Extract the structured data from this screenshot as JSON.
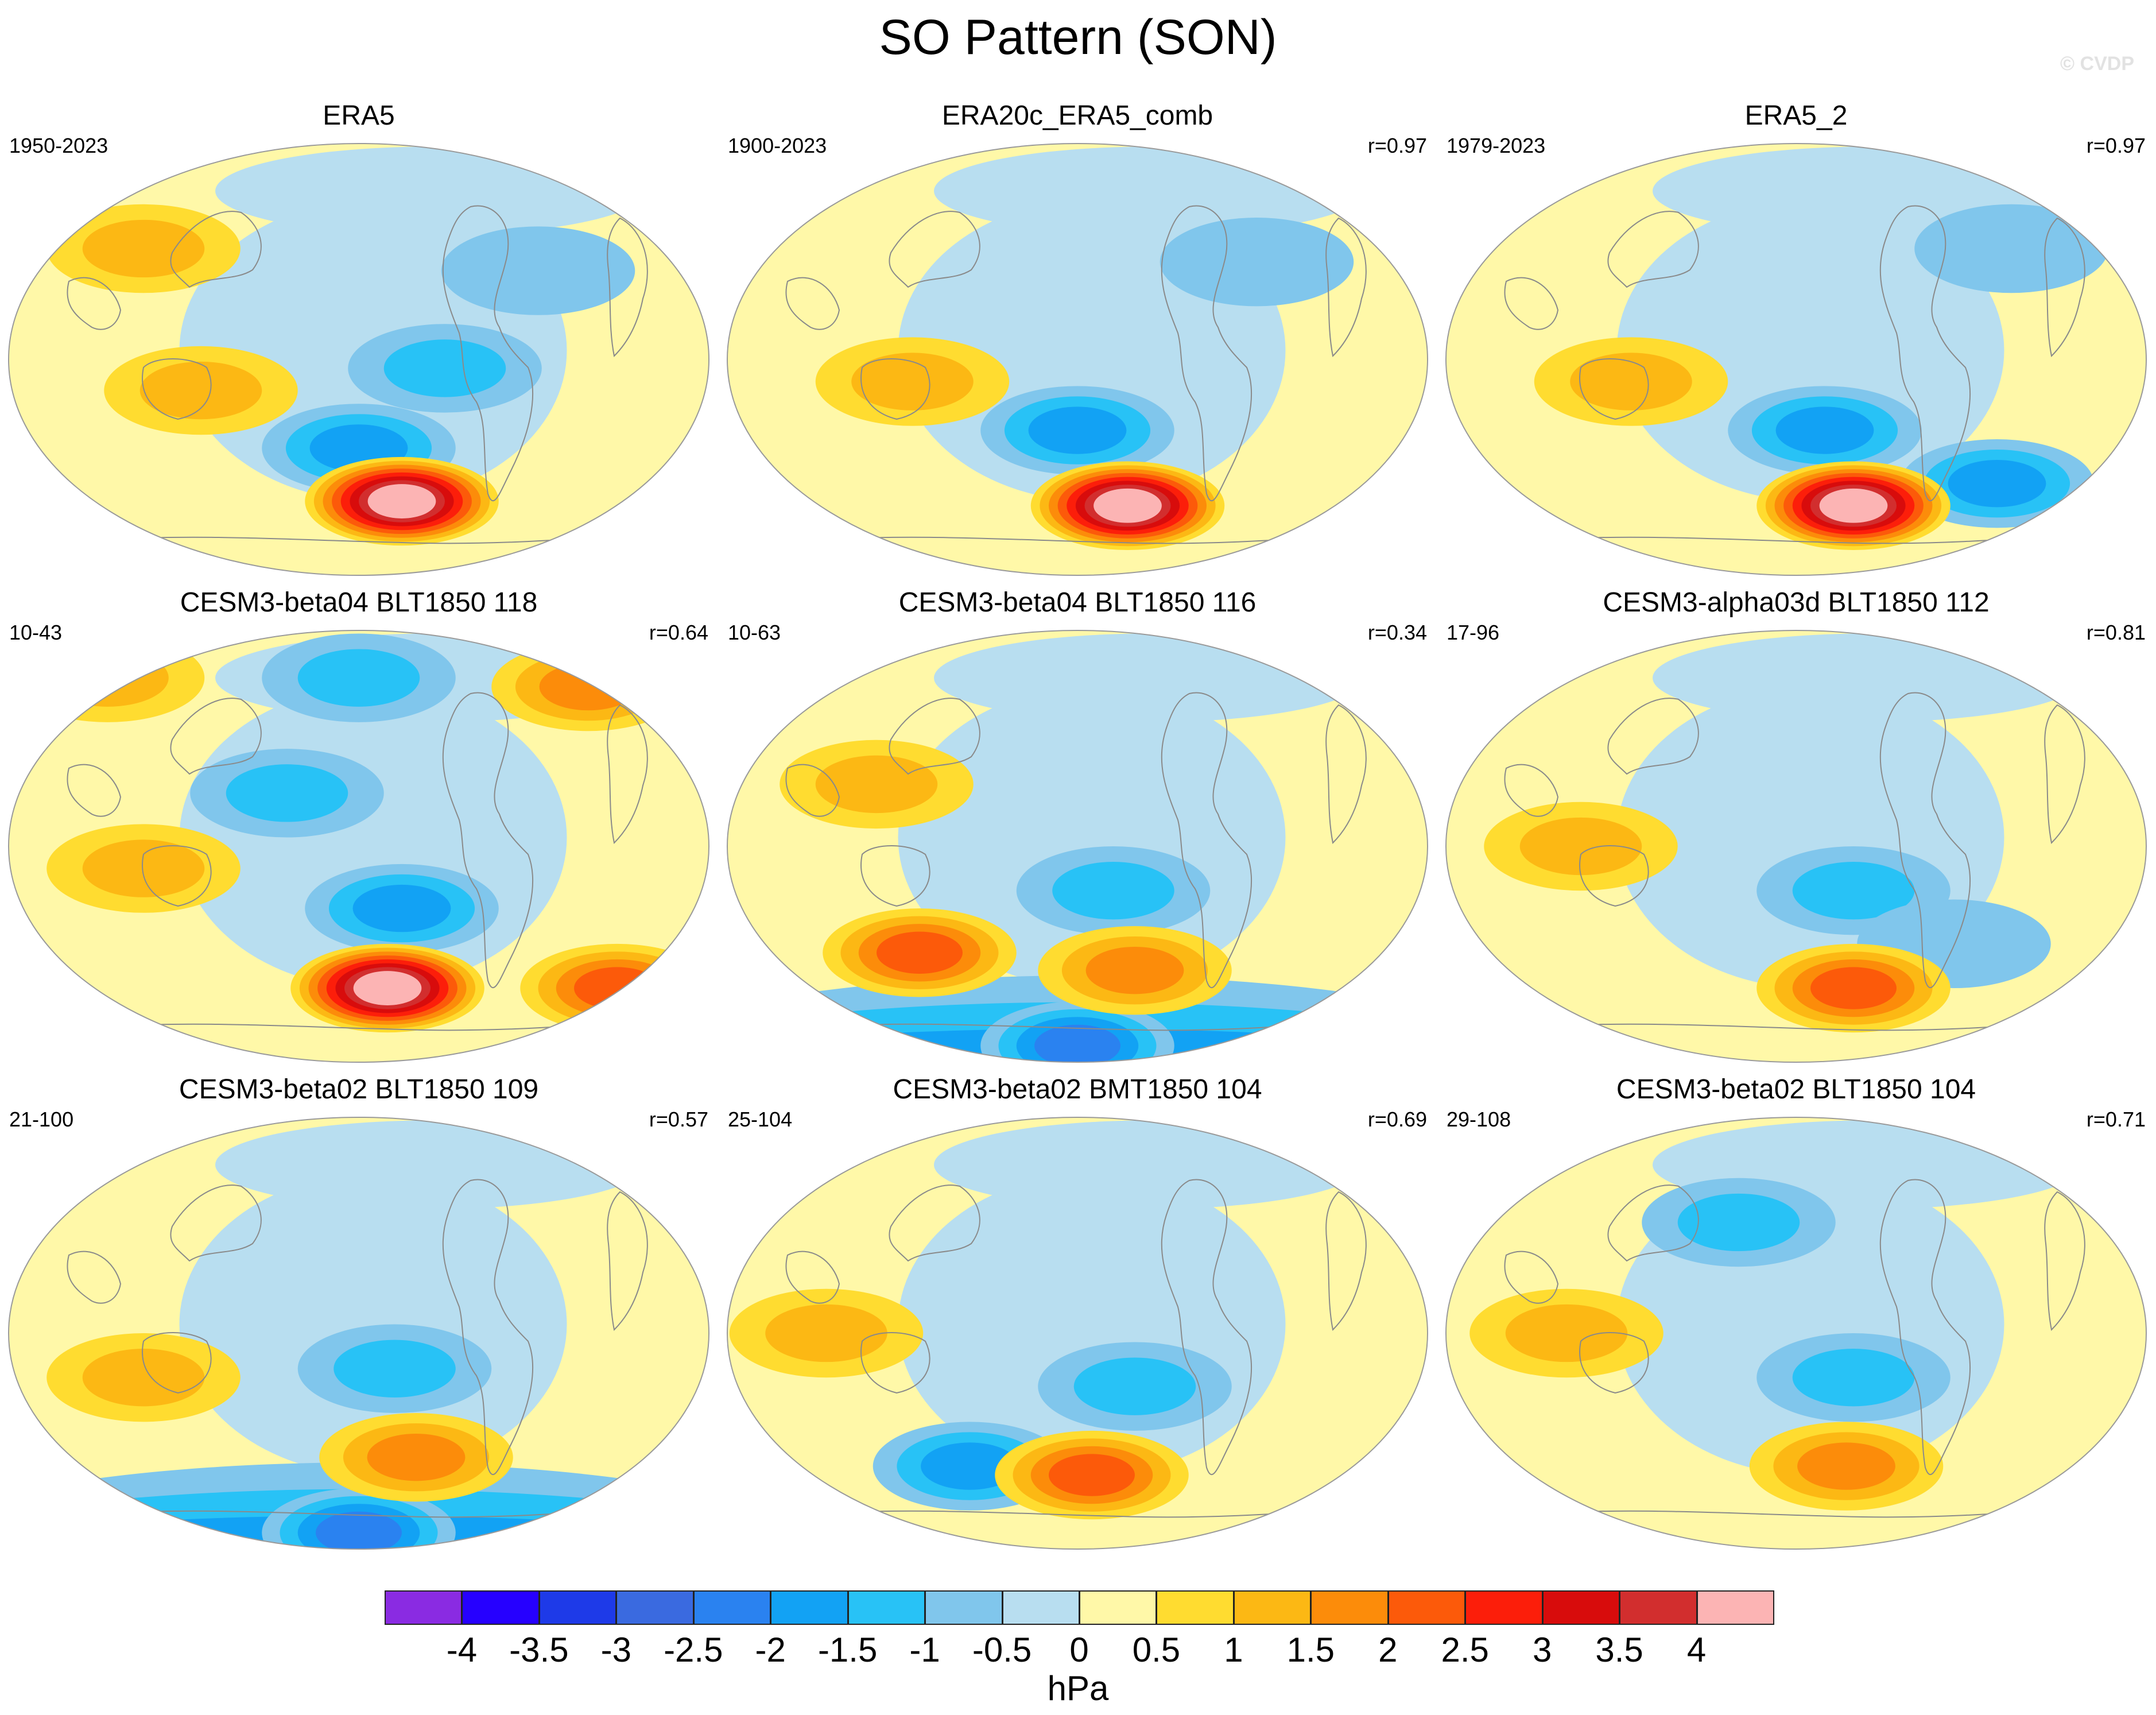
{
  "title": "SO Pattern (SON)",
  "watermark": "© CVDP",
  "panels": [
    {
      "title": "ERA5",
      "years": "1950-2023",
      "r": "",
      "highs": [
        [
          0.56,
          0.82,
          4.0
        ],
        [
          0.28,
          0.57,
          1.2
        ],
        [
          0.2,
          0.25,
          0.8
        ]
      ],
      "lows": [
        [
          0.5,
          0.7,
          -1.4
        ],
        [
          0.62,
          0.52,
          -0.8
        ],
        [
          0.75,
          0.3,
          -0.7
        ]
      ]
    },
    {
      "title": "ERA20c_ERA5_comb",
      "years": "1900-2023",
      "r": "r=0.97",
      "highs": [
        [
          0.57,
          0.83,
          4.0
        ],
        [
          0.27,
          0.55,
          1.2
        ]
      ],
      "lows": [
        [
          0.5,
          0.66,
          -1.3
        ],
        [
          0.75,
          0.28,
          -0.7
        ]
      ]
    },
    {
      "title": "ERA5_2",
      "years": "1979-2023",
      "r": "r=0.97",
      "highs": [
        [
          0.58,
          0.83,
          4.0
        ],
        [
          0.27,
          0.55,
          1.2
        ]
      ],
      "lows": [
        [
          0.54,
          0.66,
          -1.4
        ],
        [
          0.78,
          0.78,
          -1.4
        ],
        [
          0.8,
          0.25,
          -0.7
        ]
      ]
    },
    {
      "title": "CESM3-beta04 BLT1850 118",
      "years": "10-43",
      "r": "r=0.64",
      "highs": [
        [
          0.54,
          0.82,
          4.0
        ],
        [
          0.86,
          0.82,
          1.8
        ],
        [
          0.15,
          0.12,
          1.2
        ],
        [
          0.82,
          0.14,
          1.3
        ],
        [
          0.2,
          0.55,
          0.8
        ]
      ],
      "lows": [
        [
          0.56,
          0.64,
          -1.4
        ],
        [
          0.5,
          0.12,
          -1.2
        ],
        [
          0.4,
          0.38,
          -1.0
        ]
      ]
    },
    {
      "title": "CESM3-beta04 BLT1850 116",
      "years": "10-63",
      "r": "r=0.34",
      "highs": [
        [
          0.28,
          0.74,
          1.8
        ],
        [
          0.58,
          0.78,
          1.6
        ],
        [
          0.22,
          0.36,
          0.8
        ]
      ],
      "lows": [
        [
          0.5,
          0.95,
          -2.0
        ],
        [
          0.55,
          0.6,
          -0.8
        ]
      ],
      "band": -1.8
    },
    {
      "title": "CESM3-alpha03d BLT1850 112",
      "years": "17-96",
      "r": "r=0.81",
      "highs": [
        [
          0.58,
          0.82,
          2.0
        ],
        [
          0.2,
          0.5,
          1.2
        ]
      ],
      "lows": [
        [
          0.58,
          0.6,
          -1.2
        ],
        [
          0.72,
          0.72,
          -0.7
        ]
      ]
    },
    {
      "title": "CESM3-beta02 BLT1850 109",
      "years": "21-100",
      "r": "r=0.57",
      "highs": [
        [
          0.58,
          0.78,
          1.6
        ],
        [
          0.2,
          0.6,
          1.2
        ]
      ],
      "lows": [
        [
          0.5,
          0.95,
          -1.8
        ],
        [
          0.55,
          0.58,
          -0.8
        ]
      ],
      "band": -1.6
    },
    {
      "title": "CESM3-beta02 BMT1850 104",
      "years": "25-104",
      "r": "r=0.69",
      "highs": [
        [
          0.52,
          0.82,
          1.8
        ],
        [
          0.15,
          0.5,
          1.1
        ]
      ],
      "lows": [
        [
          0.35,
          0.8,
          -1.3
        ],
        [
          0.58,
          0.62,
          -0.8
        ]
      ]
    },
    {
      "title": "CESM3-beta02 BLT1850 104",
      "years": "29-108",
      "r": "r=0.71",
      "highs": [
        [
          0.57,
          0.8,
          1.6
        ],
        [
          0.18,
          0.5,
          1.1
        ]
      ],
      "lows": [
        [
          0.58,
          0.6,
          -1.2
        ],
        [
          0.42,
          0.25,
          -0.9
        ]
      ]
    }
  ],
  "chart_data": {
    "type": "heatmap",
    "title": "SO Pattern (SON)",
    "projection": "Robinson (global, Pacific-centered)",
    "units": "hPa",
    "colorbar_levels": [
      -4,
      -3.5,
      -3,
      -2.5,
      -2,
      -1.5,
      -1,
      -0.5,
      0,
      0.5,
      1,
      1.5,
      2,
      2.5,
      3,
      3.5,
      4
    ],
    "colorbar_labels": [
      "-4",
      "-3.5",
      "-3",
      "-2.5",
      "-2",
      "-1.5",
      "-1",
      "-0.5",
      "0",
      "0.5",
      "1",
      "1.5",
      "2",
      "2.5",
      "3",
      "3.5",
      "4"
    ],
    "colors": [
      "#8a2be2",
      "#2600ff",
      "#1e3ae8",
      "#3a6ae0",
      "#2a82f0",
      "#12a2f4",
      "#28c2f6",
      "#80c6ec",
      "#b8def0",
      "#fff8a8",
      "#ffdc30",
      "#fcb814",
      "#fc8c0a",
      "#fc5a0a",
      "#fc1e0a",
      "#d80c0c",
      "#d22e2e",
      "#fcb4b4"
    ]
  },
  "units_label": "hPa"
}
